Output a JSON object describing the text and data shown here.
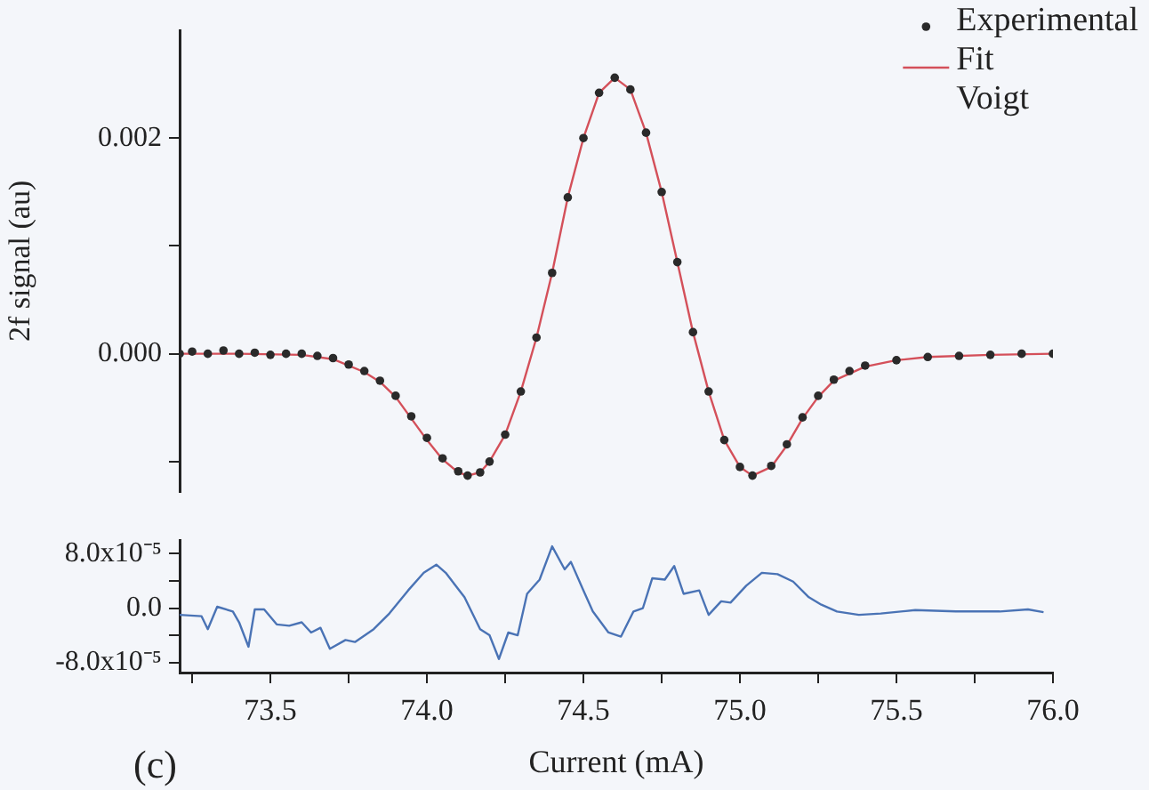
{
  "chart_data": [
    {
      "type": "line",
      "ylabel": "2f signal (au)",
      "xlim": [
        73.21,
        76.0
      ],
      "ylim": [
        -0.00128,
        0.003
      ],
      "yticks": [
        {
          "value": -0.001,
          "label": null
        },
        {
          "value": 0,
          "label": "0.000"
        },
        {
          "value": 0.001,
          "label": null
        },
        0.002
      ],
      "tick_labels": "y",
      "legend": "top right",
      "grid": false,
      "series": [
        {
          "name": "Experimental",
          "type": "scatter",
          "marker": "circle",
          "color": "#2a2a2a",
          "x": [
            73.21,
            73.25,
            73.3,
            73.35,
            73.4,
            73.45,
            73.5,
            73.55,
            73.6,
            73.65,
            73.7,
            73.75,
            73.8,
            73.85,
            73.9,
            73.95,
            74.0,
            74.05,
            74.1,
            74.13,
            74.17,
            74.2,
            74.25,
            74.3,
            74.35,
            74.4,
            74.45,
            74.5,
            74.55,
            74.6,
            74.65,
            74.7,
            74.75,
            74.8,
            74.85,
            74.9,
            74.95,
            75.0,
            75.04,
            75.1,
            75.15,
            75.2,
            75.25,
            75.3,
            75.35,
            75.4,
            75.5,
            75.6,
            75.7,
            75.8,
            75.9,
            76.0
          ],
          "values": [
            0.0,
            2e-05,
            0.0,
            3e-05,
            0.0,
            1e-05,
            -1e-05,
            0.0,
            0.0,
            -2e-05,
            -4e-05,
            -0.0001,
            -0.00016,
            -0.00025,
            -0.00039,
            -0.00058,
            -0.00078,
            -0.00097,
            -0.00109,
            -0.00113,
            -0.0011,
            -0.001,
            -0.00075,
            -0.00035,
            0.00015,
            0.00075,
            0.00145,
            0.002,
            0.00242,
            0.00256,
            0.00245,
            0.00205,
            0.0015,
            0.00085,
            0.0002,
            -0.00035,
            -0.0008,
            -0.00105,
            -0.00113,
            -0.00104,
            -0.00084,
            -0.00059,
            -0.00039,
            -0.00024,
            -0.00016,
            -0.00011,
            -6e-05,
            -3e-05,
            -2e-05,
            -1e-05,
            0.0,
            0.0
          ]
        },
        {
          "name": "Fit Voigt",
          "color": "#d4505a",
          "x": [
            73.21,
            73.4,
            73.6,
            73.7,
            73.8,
            73.85,
            73.9,
            73.95,
            74.0,
            74.05,
            74.1,
            74.13,
            74.17,
            74.2,
            74.25,
            74.3,
            74.35,
            74.4,
            74.45,
            74.5,
            74.55,
            74.6,
            74.65,
            74.7,
            74.75,
            74.8,
            74.85,
            74.9,
            74.95,
            75.0,
            75.04,
            75.1,
            75.15,
            75.2,
            75.25,
            75.3,
            75.4,
            75.5,
            75.6,
            75.8,
            76.0
          ],
          "values": [
            0.0,
            0.0,
            -1e-05,
            -5e-05,
            -0.00017,
            -0.00026,
            -0.0004,
            -0.0006,
            -0.0008,
            -0.00098,
            -0.0011,
            -0.00113,
            -0.0011,
            -0.001,
            -0.00075,
            -0.00035,
            0.00015,
            0.00075,
            0.00145,
            0.002,
            0.00242,
            0.00256,
            0.00245,
            0.00205,
            0.0015,
            0.00085,
            0.0002,
            -0.00035,
            -0.0008,
            -0.00105,
            -0.00113,
            -0.00105,
            -0.00085,
            -0.0006,
            -0.0004,
            -0.00025,
            -0.00012,
            -6e-05,
            -3e-05,
            -1e-05,
            0.0
          ]
        }
      ]
    },
    {
      "type": "line",
      "xlabel": "Current (mA)",
      "annotations": [
        "(c)"
      ],
      "xlim": [
        73.21,
        76.0
      ],
      "xticks": [
        {
          "value": 73.25,
          "label": null
        },
        73.5,
        {
          "value": 73.75,
          "label": null
        },
        {
          "value": 74.0,
          "label": "74.0"
        },
        {
          "value": 74.25,
          "label": null
        },
        74.5,
        {
          "value": 74.75,
          "label": null
        },
        {
          "value": 75.0,
          "label": "75.0"
        },
        {
          "value": 75.25,
          "label": null
        },
        75.5,
        {
          "value": 75.75,
          "label": null
        },
        {
          "value": 76.0,
          "label": "76.0"
        }
      ],
      "ylim": [
        -9.5e-05,
        0.0001
      ],
      "yticks": [
        {
          "value": -8e-05,
          "label": "-8.0x10⁻⁵"
        },
        {
          "value": -4e-05,
          "label": null
        },
        {
          "value": 0,
          "label": "0.0"
        },
        {
          "value": 4e-05,
          "label": null
        },
        {
          "value": 8e-05,
          "label": "8.0x10⁻⁵"
        }
      ],
      "grid": false,
      "marker": "none",
      "series": [
        {
          "color": "#4a73b5",
          "x": [
            73.21,
            73.28,
            73.3,
            73.33,
            73.38,
            73.4,
            73.43,
            73.45,
            73.48,
            73.52,
            73.56,
            73.6,
            73.63,
            73.66,
            73.69,
            73.74,
            73.77,
            73.83,
            73.88,
            73.94,
            73.99,
            74.03,
            74.06,
            74.12,
            74.17,
            74.2,
            74.23,
            74.26,
            74.29,
            74.32,
            74.36,
            74.4,
            74.44,
            74.46,
            74.5,
            74.53,
            74.58,
            74.62,
            74.66,
            74.69,
            74.72,
            74.76,
            74.79,
            74.82,
            74.87,
            74.9,
            74.94,
            74.97,
            75.02,
            75.07,
            75.12,
            75.17,
            75.22,
            75.26,
            75.31,
            75.38,
            75.45,
            75.56,
            75.69,
            75.83,
            75.92,
            75.97
          ],
          "values": [
            -1e-05,
            -1.2e-05,
            -3.1e-05,
            2e-06,
            -5e-06,
            -2.1e-05,
            -5.7e-05,
            -2e-06,
            -2e-06,
            -2.4e-05,
            -2.6e-05,
            -2.1e-05,
            -3.6e-05,
            -2.9e-05,
            -6e-05,
            -4.7e-05,
            -5e-05,
            -3.1e-05,
            -8e-06,
            2.6e-05,
            5.2e-05,
            6.4e-05,
            5.2e-05,
            1.6e-05,
            -3.1e-05,
            -4e-05,
            -7.5e-05,
            -3.6e-05,
            -4e-05,
            2.1e-05,
            4.2e-05,
            9.1e-05,
            5.7e-05,
            6.8e-05,
            2.6e-05,
            -5e-06,
            -3.6e-05,
            -4.2e-05,
            -5e-06,
            0.0,
            4.4e-05,
            4.2e-05,
            6.2e-05,
            2.1e-05,
            2.6e-05,
            -1e-05,
            1e-05,
            8e-06,
            3.3e-05,
            5.2e-05,
            5e-05,
            3.9e-05,
            1.6e-05,
            5e-06,
            -5e-06,
            -1e-05,
            -8e-06,
            -3e-06,
            -5e-06,
            -5e-06,
            -2e-06,
            -6e-06
          ]
        }
      ]
    }
  ]
}
